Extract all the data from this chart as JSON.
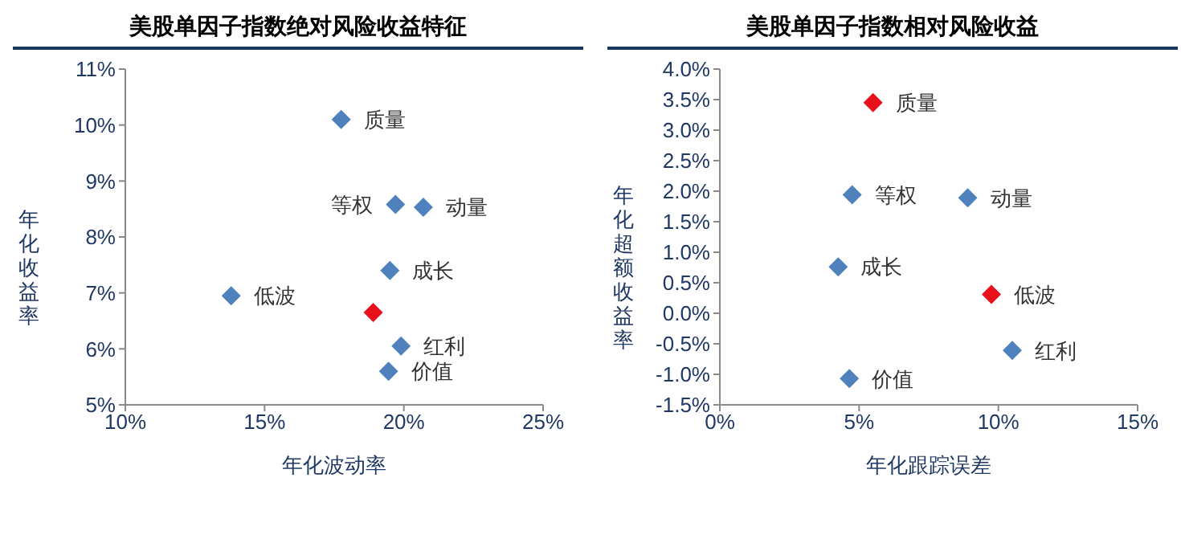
{
  "chart_data": [
    {
      "type": "scatter",
      "title": "美股单因子指数绝对风险收益特征",
      "xlabel": "年化波动率",
      "ylabel": "年化收益率",
      "marker": "diamond",
      "grid": false,
      "legend": false,
      "x": [
        17.75,
        19.7,
        20.7,
        19.5,
        13.8,
        18.9,
        19.9,
        19.45
      ],
      "values": [
        10.1,
        8.58,
        8.53,
        7.4,
        6.95,
        6.65,
        6.05,
        5.6
      ],
      "colors": [
        "#4f81bd",
        "#4f81bd",
        "#4f81bd",
        "#4f81bd",
        "#4f81bd",
        "#e8111b",
        "#4f81bd",
        "#4f81bd"
      ],
      "xlim": [
        10,
        25
      ],
      "xticks": [
        {
          "value": 10,
          "label": "10%"
        },
        {
          "value": 15,
          "label": "15%"
        },
        {
          "value": 20,
          "label": "20%"
        },
        {
          "value": 25,
          "label": "25%"
        }
      ],
      "ylim": [
        5,
        11
      ],
      "yticks": [
        {
          "value": 5,
          "label": "5%"
        },
        {
          "value": 6,
          "label": "6%"
        },
        {
          "value": 7,
          "label": "7%"
        },
        {
          "value": 8,
          "label": "8%"
        },
        {
          "value": 9,
          "label": "9%"
        },
        {
          "value": 10,
          "label": "10%"
        },
        {
          "value": 11,
          "label": "11%"
        }
      ],
      "annotations": [
        {
          "text": "质量",
          "x": 17.75,
          "y": 10.1
        },
        {
          "text": "等权",
          "x": 19.7,
          "y": 8.58
        },
        {
          "text": "动量",
          "x": 20.7,
          "y": 8.53
        },
        {
          "text": "成长",
          "x": 19.5,
          "y": 7.4
        },
        {
          "text": "低波",
          "x": 13.8,
          "y": 6.95
        },
        {
          "text": "红利",
          "x": 19.9,
          "y": 6.05
        },
        {
          "text": "价值",
          "x": 19.45,
          "y": 5.6
        }
      ]
    },
    {
      "type": "scatter",
      "title": "美股单因子指数相对风险收益",
      "xlabel": "年化跟踪误差",
      "ylabel": "年化超额收益率",
      "marker": "diamond",
      "grid": false,
      "legend": false,
      "x": [
        5.5,
        4.75,
        8.9,
        4.25,
        9.75,
        10.5,
        4.65
      ],
      "values": [
        3.45,
        1.94,
        1.89,
        0.76,
        0.31,
        -0.61,
        -1.07
      ],
      "colors": [
        "#e8111b",
        "#4f81bd",
        "#4f81bd",
        "#4f81bd",
        "#e8111b",
        "#4f81bd",
        "#4f81bd"
      ],
      "xlim": [
        0,
        15
      ],
      "xticks": [
        {
          "value": 0,
          "label": "0%"
        },
        {
          "value": 5,
          "label": "5%"
        },
        {
          "value": 10,
          "label": "10%"
        },
        {
          "value": 15,
          "label": "15%"
        }
      ],
      "ylim": [
        -1.5,
        4
      ],
      "yticks": [
        {
          "value": -1.5,
          "label": "-1.5%"
        },
        {
          "value": -1,
          "label": "-1.0%"
        },
        {
          "value": -0.5,
          "label": "-0.5%"
        },
        {
          "value": 0,
          "label": "0.0%"
        },
        {
          "value": 0.5,
          "label": "0.5%"
        },
        {
          "value": 1,
          "label": "1.0%"
        },
        {
          "value": 1.5,
          "label": "1.5%"
        },
        {
          "value": 2,
          "label": "2.0%"
        },
        {
          "value": 2.5,
          "label": "2.5%"
        },
        {
          "value": 3,
          "label": "3.0%"
        },
        {
          "value": 3.5,
          "label": "3.5%"
        },
        {
          "value": 4,
          "label": "4.0%"
        }
      ],
      "annotations": [
        {
          "text": "质量",
          "x": 5.5,
          "y": 3.45
        },
        {
          "text": "等权",
          "x": 4.75,
          "y": 1.94
        },
        {
          "text": "动量",
          "x": 8.9,
          "y": 1.89
        },
        {
          "text": "成长",
          "x": 4.25,
          "y": 0.76
        },
        {
          "text": "低波",
          "x": 9.75,
          "y": 0.31
        },
        {
          "text": "红利",
          "x": 10.5,
          "y": -0.61
        },
        {
          "text": "价值",
          "x": 4.65,
          "y": -1.07
        }
      ]
    }
  ]
}
